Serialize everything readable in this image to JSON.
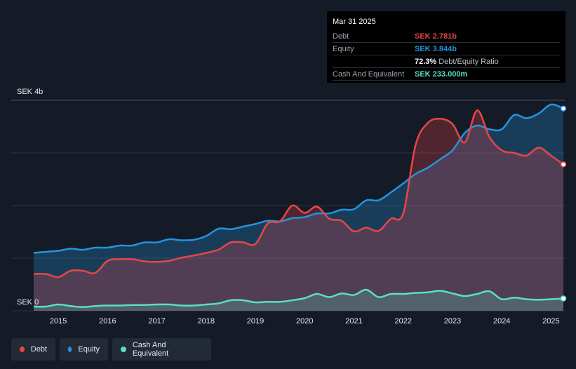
{
  "chart_data": {
    "type": "area",
    "y_unit_label_top": "SEK 4b",
    "y_unit_label_bottom": "SEK 0",
    "ylim": [
      0,
      4.0
    ],
    "xlim": [
      2014.5,
      2025.25
    ],
    "x_ticks": [
      2015,
      2016,
      2017,
      2018,
      2019,
      2020,
      2021,
      2022,
      2023,
      2024,
      2025
    ],
    "x_tick_labels": [
      "2015",
      "2016",
      "2017",
      "2018",
      "2019",
      "2020",
      "2021",
      "2022",
      "2023",
      "2024",
      "2025"
    ],
    "grid": true,
    "legend_position": "bottom-left",
    "series": [
      {
        "name": "Equity",
        "color": "#2394df",
        "points": [
          [
            2014.5,
            1.1
          ],
          [
            2014.75,
            1.12
          ],
          [
            2015.0,
            1.14
          ],
          [
            2015.25,
            1.18
          ],
          [
            2015.5,
            1.16
          ],
          [
            2015.75,
            1.2
          ],
          [
            2016.0,
            1.2
          ],
          [
            2016.25,
            1.24
          ],
          [
            2016.5,
            1.24
          ],
          [
            2016.75,
            1.3
          ],
          [
            2017.0,
            1.3
          ],
          [
            2017.25,
            1.36
          ],
          [
            2017.5,
            1.34
          ],
          [
            2017.75,
            1.35
          ],
          [
            2018.0,
            1.42
          ],
          [
            2018.25,
            1.56
          ],
          [
            2018.5,
            1.55
          ],
          [
            2018.75,
            1.6
          ],
          [
            2019.0,
            1.65
          ],
          [
            2019.25,
            1.71
          ],
          [
            2019.5,
            1.7
          ],
          [
            2019.75,
            1.76
          ],
          [
            2020.0,
            1.78
          ],
          [
            2020.25,
            1.85
          ],
          [
            2020.5,
            1.85
          ],
          [
            2020.75,
            1.92
          ],
          [
            2021.0,
            1.93
          ],
          [
            2021.25,
            2.1
          ],
          [
            2021.5,
            2.1
          ],
          [
            2021.75,
            2.25
          ],
          [
            2022.0,
            2.42
          ],
          [
            2022.25,
            2.6
          ],
          [
            2022.5,
            2.72
          ],
          [
            2022.75,
            2.88
          ],
          [
            2023.0,
            3.05
          ],
          [
            2023.25,
            3.38
          ],
          [
            2023.5,
            3.52
          ],
          [
            2023.75,
            3.45
          ],
          [
            2024.0,
            3.45
          ],
          [
            2024.25,
            3.72
          ],
          [
            2024.5,
            3.66
          ],
          [
            2024.75,
            3.75
          ],
          [
            2025.0,
            3.92
          ],
          [
            2025.25,
            3.844
          ]
        ]
      },
      {
        "name": "Debt",
        "color": "#e64649",
        "points": [
          [
            2014.5,
            0.7
          ],
          [
            2014.75,
            0.7
          ],
          [
            2015.0,
            0.64
          ],
          [
            2015.25,
            0.76
          ],
          [
            2015.5,
            0.76
          ],
          [
            2015.75,
            0.72
          ],
          [
            2016.0,
            0.95
          ],
          [
            2016.25,
            0.98
          ],
          [
            2016.5,
            0.98
          ],
          [
            2016.75,
            0.94
          ],
          [
            2017.0,
            0.93
          ],
          [
            2017.25,
            0.95
          ],
          [
            2017.5,
            1.01
          ],
          [
            2017.75,
            1.05
          ],
          [
            2018.0,
            1.1
          ],
          [
            2018.25,
            1.16
          ],
          [
            2018.5,
            1.3
          ],
          [
            2018.75,
            1.3
          ],
          [
            2019.0,
            1.27
          ],
          [
            2019.25,
            1.66
          ],
          [
            2019.5,
            1.7
          ],
          [
            2019.75,
            2.0
          ],
          [
            2020.0,
            1.86
          ],
          [
            2020.25,
            1.98
          ],
          [
            2020.5,
            1.75
          ],
          [
            2020.75,
            1.71
          ],
          [
            2021.0,
            1.51
          ],
          [
            2021.25,
            1.58
          ],
          [
            2021.5,
            1.52
          ],
          [
            2021.75,
            1.75
          ],
          [
            2022.0,
            1.85
          ],
          [
            2022.25,
            3.15
          ],
          [
            2022.5,
            3.57
          ],
          [
            2022.75,
            3.65
          ],
          [
            2023.0,
            3.55
          ],
          [
            2023.25,
            3.2
          ],
          [
            2023.5,
            3.81
          ],
          [
            2023.75,
            3.3
          ],
          [
            2024.0,
            3.05
          ],
          [
            2024.25,
            3.0
          ],
          [
            2024.5,
            2.95
          ],
          [
            2024.75,
            3.1
          ],
          [
            2025.0,
            2.95
          ],
          [
            2025.25,
            2.781
          ]
        ]
      },
      {
        "name": "Cash And Equivalent",
        "color": "#58e1c1",
        "points": [
          [
            2014.5,
            0.08
          ],
          [
            2014.75,
            0.08
          ],
          [
            2015.0,
            0.12
          ],
          [
            2015.25,
            0.09
          ],
          [
            2015.5,
            0.07
          ],
          [
            2015.75,
            0.09
          ],
          [
            2016.0,
            0.1
          ],
          [
            2016.25,
            0.1
          ],
          [
            2016.5,
            0.11
          ],
          [
            2016.75,
            0.11
          ],
          [
            2017.0,
            0.12
          ],
          [
            2017.25,
            0.12
          ],
          [
            2017.5,
            0.1
          ],
          [
            2017.75,
            0.1
          ],
          [
            2018.0,
            0.12
          ],
          [
            2018.25,
            0.14
          ],
          [
            2018.5,
            0.2
          ],
          [
            2018.75,
            0.2
          ],
          [
            2019.0,
            0.16
          ],
          [
            2019.25,
            0.17
          ],
          [
            2019.5,
            0.17
          ],
          [
            2019.75,
            0.2
          ],
          [
            2020.0,
            0.24
          ],
          [
            2020.25,
            0.32
          ],
          [
            2020.5,
            0.26
          ],
          [
            2020.75,
            0.33
          ],
          [
            2021.0,
            0.3
          ],
          [
            2021.25,
            0.4
          ],
          [
            2021.5,
            0.26
          ],
          [
            2021.75,
            0.32
          ],
          [
            2022.0,
            0.32
          ],
          [
            2022.25,
            0.34
          ],
          [
            2022.5,
            0.35
          ],
          [
            2022.75,
            0.38
          ],
          [
            2023.0,
            0.33
          ],
          [
            2023.25,
            0.28
          ],
          [
            2023.5,
            0.32
          ],
          [
            2023.75,
            0.37
          ],
          [
            2024.0,
            0.22
          ],
          [
            2024.25,
            0.25
          ],
          [
            2024.5,
            0.22
          ],
          [
            2024.75,
            0.21
          ],
          [
            2025.0,
            0.22
          ],
          [
            2025.25,
            0.233
          ]
        ]
      }
    ]
  },
  "tooltip": {
    "date": "Mar 31 2025",
    "debt_label": "Debt",
    "debt_value": "SEK 2.781b",
    "equity_label": "Equity",
    "equity_value": "SEK 3.844b",
    "ratio_value": "72.3%",
    "ratio_label": "Debt/Equity Ratio",
    "cash_label": "Cash And Equivalent",
    "cash_value": "SEK 233.000m"
  },
  "legend": {
    "debt": "Debt",
    "equity": "Equity",
    "cash": "Cash And Equivalent"
  },
  "colors": {
    "debt": "#e64649",
    "equity": "#2394df",
    "cash": "#58e1c1",
    "background": "#151b26"
  }
}
